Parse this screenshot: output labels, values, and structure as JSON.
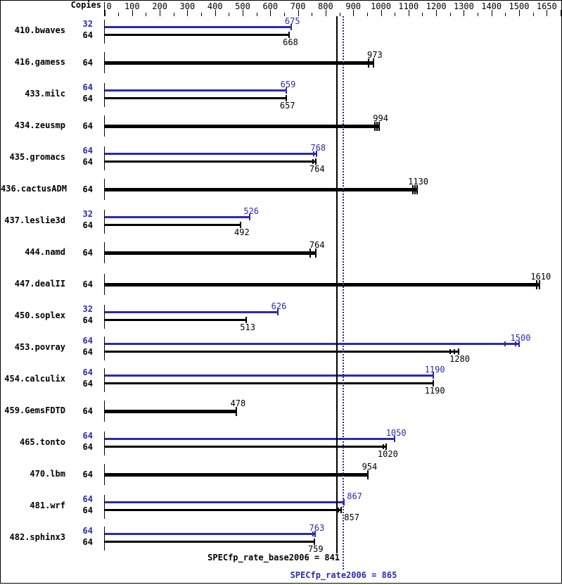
{
  "columns": {
    "copies_header": "Copies"
  },
  "colors": {
    "peak": "#2a2ab2",
    "base": "#000000",
    "background": "#ffffff"
  },
  "chart_data": {
    "type": "bar",
    "orientation": "horizontal",
    "x_axis": {
      "min": 0,
      "max": 1650,
      "major_tick_values": [
        0,
        100,
        200,
        300,
        400,
        500,
        600,
        700,
        800,
        900,
        1000,
        1100,
        1200,
        1300,
        1400,
        1500,
        1650
      ],
      "major_tick_labels": [
        "0",
        "100",
        "200",
        "300",
        "400",
        "500",
        "600",
        "700",
        "800",
        "900",
        "1000",
        "1100",
        "1200",
        "1300",
        "1400",
        "1500",
        "1650"
      ],
      "minor_tick_values": [
        50,
        150,
        250,
        350,
        450,
        550,
        650,
        750,
        850,
        950,
        1050,
        1150,
        1250,
        1350,
        1450,
        1575
      ]
    },
    "series": [
      {
        "name": "peak",
        "color": "#2a2ab2"
      },
      {
        "name": "base",
        "color": "#000000"
      }
    ],
    "benchmarks": [
      {
        "name": "410.bwaves",
        "peak": {
          "copies": "32",
          "value": 675,
          "run_marks": []
        },
        "base": {
          "copies": "64",
          "value": 668,
          "run_marks": []
        }
      },
      {
        "name": "416.gamess",
        "base": {
          "copies": "64",
          "value": 973,
          "run_marks": [
            -7
          ]
        }
      },
      {
        "name": "433.milc",
        "peak": {
          "copies": "64",
          "value": 659,
          "run_marks": []
        },
        "base": {
          "copies": "64",
          "value": 657,
          "run_marks": []
        }
      },
      {
        "name": "434.zeusmp",
        "base": {
          "copies": "64",
          "value": 994,
          "run_marks": [
            -6,
            -3
          ]
        }
      },
      {
        "name": "435.gromacs",
        "peak": {
          "copies": "64",
          "value": 768,
          "run_marks": [
            -4
          ]
        },
        "base": {
          "copies": "64",
          "value": 764,
          "run_marks": [
            -4
          ]
        }
      },
      {
        "name": "436.cactusADM",
        "base": {
          "copies": "64",
          "value": 1130,
          "run_marks": [
            -6,
            -3
          ]
        }
      },
      {
        "name": "437.leslie3d",
        "peak": {
          "copies": "32",
          "value": 526,
          "run_marks": []
        },
        "base": {
          "copies": "64",
          "value": 492,
          "run_marks": []
        }
      },
      {
        "name": "444.namd",
        "base": {
          "copies": "64",
          "value": 764,
          "run_marks": [
            -8
          ]
        }
      },
      {
        "name": "447.dealII",
        "base": {
          "copies": "64",
          "value": 1610,
          "run_marks": [
            -4
          ]
        }
      },
      {
        "name": "450.soplex",
        "peak": {
          "copies": "32",
          "value": 626,
          "run_marks": []
        },
        "base": {
          "copies": "64",
          "value": 513,
          "run_marks": []
        }
      },
      {
        "name": "453.povray",
        "peak": {
          "copies": "64",
          "value": 1500,
          "run_marks": [
            -20,
            -5
          ]
        },
        "base": {
          "copies": "64",
          "value": 1280,
          "run_marks": [
            -12,
            -6
          ]
        }
      },
      {
        "name": "454.calculix",
        "peak": {
          "copies": "64",
          "value": 1190,
          "run_marks": []
        },
        "base": {
          "copies": "64",
          "value": 1190,
          "run_marks": []
        }
      },
      {
        "name": "459.GemsFDTD",
        "base": {
          "copies": "64",
          "value": 478,
          "run_marks": []
        }
      },
      {
        "name": "465.tonto",
        "peak": {
          "copies": "64",
          "value": 1050,
          "run_marks": []
        },
        "base": {
          "copies": "64",
          "value": 1020,
          "run_marks": [
            -4
          ]
        }
      },
      {
        "name": "470.lbm",
        "base": {
          "copies": "64",
          "value": 954,
          "run_marks": []
        }
      },
      {
        "name": "481.wrf",
        "peak": {
          "copies": "64",
          "value": 867,
          "run_marks": []
        },
        "base": {
          "copies": "64",
          "value": 857,
          "run_marks": [
            -4
          ]
        }
      },
      {
        "name": "482.sphinx3",
        "peak": {
          "copies": "64",
          "value": 763,
          "run_marks": [
            -3
          ]
        },
        "base": {
          "copies": "64",
          "value": 759,
          "run_marks": []
        }
      }
    ],
    "reference_lines": [
      {
        "name": "base_mean",
        "value": 841,
        "style": "solid",
        "color": "#000000",
        "label": "SPECfp_rate_base2006 = 841"
      },
      {
        "name": "peak_mean",
        "value": 865,
        "style": "dotted",
        "color": "#2a2ab2",
        "label": "SPECfp_rate2006 = 865"
      }
    ]
  }
}
